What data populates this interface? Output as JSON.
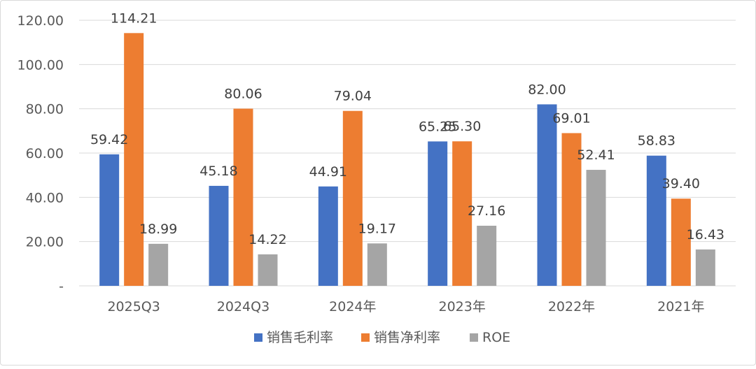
{
  "chart_data": {
    "type": "bar",
    "categories": [
      "2025Q3",
      "2024Q3",
      "2024年",
      "2023年",
      "2022年",
      "2021年"
    ],
    "series": [
      {
        "name": "销售毛利率",
        "color": "#4472C4",
        "values": [
          59.42,
          45.18,
          44.91,
          65.25,
          82.0,
          58.83
        ],
        "labels": [
          "59.42",
          "45.18",
          "44.91",
          "65.25",
          "82.00",
          "58.83"
        ]
      },
      {
        "name": "销售净利率",
        "color": "#ED7D31",
        "values": [
          114.21,
          80.06,
          79.04,
          65.3,
          69.01,
          39.4
        ],
        "labels": [
          "114.21",
          "80.06",
          "79.04",
          "65.30",
          "69.01",
          "39.40"
        ]
      },
      {
        "name": "ROE",
        "color": "#A5A5A5",
        "values": [
          18.99,
          14.22,
          19.17,
          27.16,
          52.41,
          16.43
        ],
        "labels": [
          "18.99",
          "14.22",
          "19.17",
          "27.16",
          "52.41",
          "16.43"
        ]
      }
    ],
    "yticks": [
      "-",
      "20.00",
      "40.00",
      "60.00",
      "80.00",
      "100.00",
      "120.00"
    ],
    "ylim": [
      0,
      120
    ],
    "grid": true,
    "legend": "bottom",
    "title": "",
    "xlabel": "",
    "ylabel": ""
  }
}
